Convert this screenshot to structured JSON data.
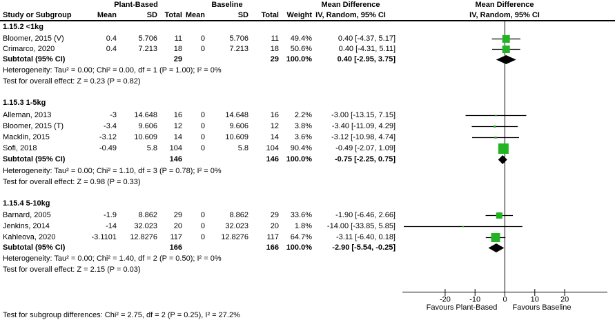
{
  "header": {
    "pb_group": "Plant-Based",
    "bl_group": "Baseline",
    "study_col": "Study or Subgroup",
    "mean_col": "Mean",
    "sd_col": "SD",
    "total_col": "Total",
    "weight_col": "Weight",
    "md_col_line1": "Mean Difference",
    "md_col_line2": "IV, Random, 95% CI",
    "plot_col_line1": "Mean Difference",
    "plot_col_line2": "IV, Random, 95% CI"
  },
  "axis": {
    "ticks": [
      {
        "v": -20,
        "label": "-20"
      },
      {
        "v": -10,
        "label": "-10"
      },
      {
        "v": 0,
        "label": "0"
      },
      {
        "v": 10,
        "label": "10"
      },
      {
        "v": 20,
        "label": "20"
      }
    ],
    "favours_left": "Favours Plant-Based",
    "favours_right": "Favours Baseline"
  },
  "footer": {
    "subgroup_diff": "Test for subgroup differences: Chi² = 2.75, df = 2 (P = 0.25), I² = 27.2%"
  },
  "colors": {
    "marker_green": "#22b422",
    "diamond_black": "#000000",
    "line_black": "#000000"
  },
  "chart_data": {
    "type": "forest",
    "effect_label": "Mean Difference, IV, Random, 95% CI",
    "xlim": [
      -34.3,
      34.3
    ],
    "subgroups": [
      {
        "label": "1.15.2 <1kg",
        "studies": [
          {
            "name": "Bloomer, 2015 (V)",
            "pb_mean": "0.4",
            "pb_sd": "5.706",
            "pb_total": "11",
            "bl_mean": "0",
            "bl_sd": "5.706",
            "bl_total": "11",
            "weight": "49.4%",
            "md_ci": "0.40 [-4.37, 5.17]",
            "md": 0.4,
            "ci_low": -4.37,
            "ci_high": 5.17,
            "weight_pct": 49.4
          },
          {
            "name": "Crimarco, 2020",
            "pb_mean": "0.4",
            "pb_sd": "7.213",
            "pb_total": "18",
            "bl_mean": "0",
            "bl_sd": "7.213",
            "bl_total": "18",
            "weight": "50.6%",
            "md_ci": "0.40 [-4.31, 5.11]",
            "md": 0.4,
            "ci_low": -4.31,
            "ci_high": 5.11,
            "weight_pct": 50.6
          }
        ],
        "subtotal": {
          "label": "Subtotal (95% CI)",
          "pb_total": "29",
          "bl_total": "29",
          "weight": "100.0%",
          "md_ci": "0.40 [-2.95, 3.75]",
          "md": 0.4,
          "ci_low": -2.95,
          "ci_high": 3.75
        },
        "heterogeneity": "Heterogeneity: Tau² = 0.00; Chi² = 0.00, df = 1 (P = 1.00); I² = 0%",
        "overall_effect": "Test for overall effect: Z = 0.23 (P = 0.82)"
      },
      {
        "label": "1.15.3 1-5kg",
        "studies": [
          {
            "name": "Alleman, 2013",
            "pb_mean": "-3",
            "pb_sd": "14.648",
            "pb_total": "16",
            "bl_mean": "0",
            "bl_sd": "14.648",
            "bl_total": "16",
            "weight": "2.2%",
            "md_ci": "-3.00 [-13.15, 7.15]",
            "md": -3.0,
            "ci_low": -13.15,
            "ci_high": 7.15,
            "weight_pct": 2.2
          },
          {
            "name": "Bloomer, 2015 (T)",
            "pb_mean": "-3.4",
            "pb_sd": "9.606",
            "pb_total": "12",
            "bl_mean": "0",
            "bl_sd": "9.606",
            "bl_total": "12",
            "weight": "3.8%",
            "md_ci": "-3.40 [-11.09, 4.29]",
            "md": -3.4,
            "ci_low": -11.09,
            "ci_high": 4.29,
            "weight_pct": 3.8
          },
          {
            "name": "Macklin, 2015",
            "pb_mean": "-3.12",
            "pb_sd": "10.609",
            "pb_total": "14",
            "bl_mean": "0",
            "bl_sd": "10.609",
            "bl_total": "14",
            "weight": "3.6%",
            "md_ci": "-3.12 [-10.98, 4.74]",
            "md": -3.12,
            "ci_low": -10.98,
            "ci_high": 4.74,
            "weight_pct": 3.6
          },
          {
            "name": "Sofi, 2018",
            "pb_mean": "-0.49",
            "pb_sd": "5.8",
            "pb_total": "104",
            "bl_mean": "0",
            "bl_sd": "5.8",
            "bl_total": "104",
            "weight": "90.4%",
            "md_ci": "-0.49 [-2.07, 1.09]",
            "md": -0.49,
            "ci_low": -2.07,
            "ci_high": 1.09,
            "weight_pct": 90.4
          }
        ],
        "subtotal": {
          "label": "Subtotal (95% CI)",
          "pb_total": "146",
          "bl_total": "146",
          "weight": "100.0%",
          "md_ci": "-0.75 [-2.25, 0.75]",
          "md": -0.75,
          "ci_low": -2.25,
          "ci_high": 0.75
        },
        "heterogeneity": "Heterogeneity: Tau² = 0.00; Chi² = 1.10, df = 3 (P = 0.78); I² = 0%",
        "overall_effect": "Test for overall effect: Z = 0.98 (P = 0.33)"
      },
      {
        "label": "1.15.4 5-10kg",
        "studies": [
          {
            "name": "Barnard, 2005",
            "pb_mean": "-1.9",
            "pb_sd": "8.862",
            "pb_total": "29",
            "bl_mean": "0",
            "bl_sd": "8.862",
            "bl_total": "29",
            "weight": "33.6%",
            "md_ci": "-1.90 [-6.46, 2.66]",
            "md": -1.9,
            "ci_low": -6.46,
            "ci_high": 2.66,
            "weight_pct": 33.6
          },
          {
            "name": "Jenkins, 2014",
            "pb_mean": "-14",
            "pb_sd": "32.023",
            "pb_total": "20",
            "bl_mean": "0",
            "bl_sd": "32.023",
            "bl_total": "20",
            "weight": "1.8%",
            "md_ci": "-14.00 [-33.85, 5.85]",
            "md": -14.0,
            "ci_low": -33.85,
            "ci_high": 5.85,
            "weight_pct": 1.8
          },
          {
            "name": "Kahleova, 2020",
            "pb_mean": "-3.1101",
            "pb_sd": "12.8276",
            "pb_total": "117",
            "bl_mean": "0",
            "bl_sd": "12.8276",
            "bl_total": "117",
            "weight": "64.7%",
            "md_ci": "-3.11 [-6.40, 0.18]",
            "md": -3.11,
            "ci_low": -6.4,
            "ci_high": 0.18,
            "weight_pct": 64.7
          }
        ],
        "subtotal": {
          "label": "Subtotal (95% CI)",
          "pb_total": "166",
          "bl_total": "166",
          "weight": "100.0%",
          "md_ci": "-2.90 [-5.54, -0.25]",
          "md": -2.9,
          "ci_low": -5.54,
          "ci_high": -0.25
        },
        "heterogeneity": "Heterogeneity: Tau² = 0.00; Chi² = 1.40, df = 2 (P = 0.50); I² = 0%",
        "overall_effect": "Test for overall effect: Z = 2.15 (P = 0.03)"
      }
    ]
  }
}
